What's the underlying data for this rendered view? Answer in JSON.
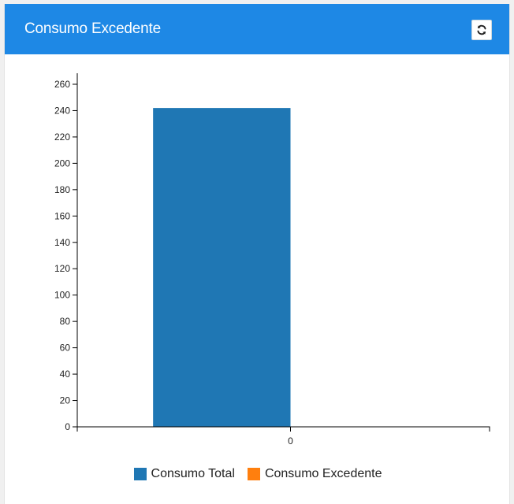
{
  "panel": {
    "title": "Consumo Excedente",
    "refresh_icon": "refresh-icon",
    "header_color": "#1e88e5"
  },
  "chart_data": {
    "type": "bar",
    "categories": [
      "0"
    ],
    "series": [
      {
        "name": "Consumo Total",
        "values": [
          242
        ],
        "color": "#1f77b4"
      },
      {
        "name": "Consumo Excedente",
        "values": [
          0
        ],
        "color": "#ff7f0e"
      }
    ],
    "title": "",
    "xlabel": "",
    "ylabel": "",
    "ylim": [
      0,
      260
    ],
    "yticks": [
      0,
      20,
      40,
      60,
      80,
      100,
      120,
      140,
      160,
      180,
      200,
      220,
      240,
      260
    ],
    "grid": false,
    "legend_position": "bottom-center"
  }
}
